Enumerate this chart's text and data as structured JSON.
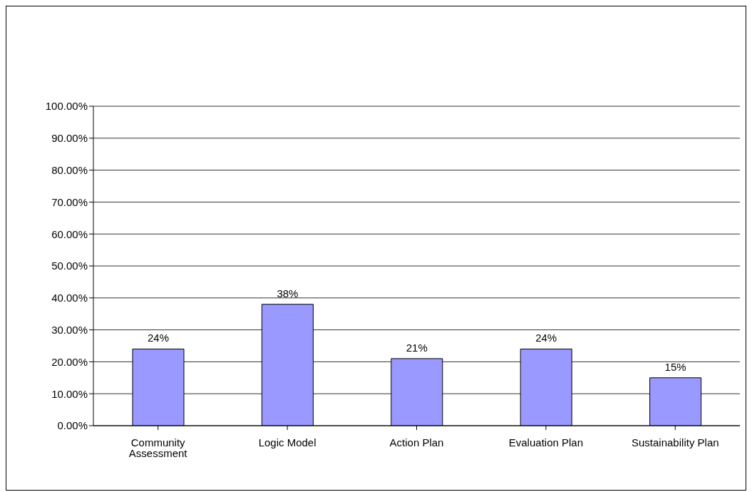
{
  "chart_data": {
    "type": "bar",
    "categories": [
      "Community Assessment",
      "Logic Model",
      "Action Plan",
      "Evaluation Plan",
      "Sustainability Plan"
    ],
    "values": [
      24,
      38,
      21,
      24,
      15
    ],
    "value_labels": [
      "24%",
      "38%",
      "21%",
      "24%",
      "15%"
    ],
    "color": "#9999ff",
    "ylim": [
      0,
      100
    ],
    "yticks": [
      {
        "value": 0,
        "label": "0.00%"
      },
      {
        "value": 10,
        "label": "10.00%"
      },
      {
        "value": 20,
        "label": "20.00%"
      },
      {
        "value": 30,
        "label": "30.00%"
      },
      {
        "value": 40,
        "label": "40.00%"
      },
      {
        "value": 50,
        "label": "50.00%"
      },
      {
        "value": 60,
        "label": "60.00%"
      },
      {
        "value": 70,
        "label": "70.00%"
      },
      {
        "value": 80,
        "label": "80.00%"
      },
      {
        "value": 90,
        "label": "90.00%"
      },
      {
        "value": 100,
        "label": "100.00%"
      }
    ],
    "grid": "y",
    "legend": false
  }
}
